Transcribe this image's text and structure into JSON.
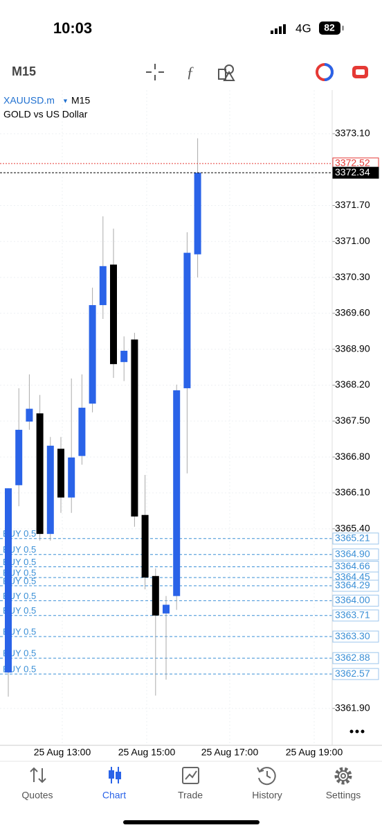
{
  "status_bar": {
    "time": "10:03",
    "network": "4G",
    "battery": "82"
  },
  "toolbar": {
    "timeframe": "M15"
  },
  "chart_data": {
    "type": "candlestick",
    "symbol": "XAUUSD.m",
    "timeframe": "M15",
    "description": "GOLD vs US Dollar",
    "open": [
      3362.6,
      3366.25,
      3367.49,
      3367.65,
      3365.3,
      3366.96,
      3366.01,
      3366.82,
      3367.84,
      3369.76,
      3370.55,
      3368.65,
      3369.09,
      3365.67,
      3364.48,
      3363.75,
      3364.09,
      3368.14,
      3370.75
    ],
    "high": [
      3366.19,
      3368.14,
      3368.41,
      3368.01,
      3367.19,
      3367.19,
      3368.33,
      3368.41,
      3370.1,
      3371.49,
      3371.25,
      3369.15,
      3369.22,
      3366.45,
      3364.63,
      3364.09,
      3368.21,
      3371.18,
      3373.01
    ],
    "low": [
      3362.13,
      3365.84,
      3367.33,
      3365.17,
      3365.17,
      3365.71,
      3365.71,
      3366.65,
      3367.67,
      3369.49,
      3368.34,
      3368.28,
      3365.44,
      3364.22,
      3362.15,
      3362.46,
      3363.82,
      3366.48,
      3370.3
    ],
    "close": [
      3366.19,
      3367.33,
      3367.74,
      3365.3,
      3367.02,
      3366.01,
      3366.79,
      3367.76,
      3369.76,
      3370.52,
      3368.61,
      3368.87,
      3365.64,
      3364.45,
      3363.71,
      3363.92,
      3368.1,
      3370.78,
      3372.34
    ],
    "up_color": "#2a63e8",
    "down_color": "#000000",
    "ylim": [
      3361.18,
      3373.95
    ],
    "yticks": [
      {
        "value": 3373.1,
        "label": "3373.10"
      },
      {
        "value": 3371.7,
        "label": "3371.70"
      },
      {
        "value": 3371,
        "label": "3371.00"
      },
      {
        "value": 3370.3,
        "label": "3370.30"
      },
      {
        "value": 3369.6,
        "label": "3369.60"
      },
      {
        "value": 3368.9,
        "label": "3368.90"
      },
      {
        "value": 3368.2,
        "label": "3368.20"
      },
      {
        "value": 3367.5,
        "label": "3367.50"
      },
      {
        "value": 3366.8,
        "label": "3366.80"
      },
      {
        "value": 3366.1,
        "label": "3366.10"
      },
      {
        "value": 3365.4,
        "label": "3365.40"
      },
      {
        "value": 3361.9,
        "label": "3361.90"
      }
    ],
    "x_labels": [
      "25 Aug 13:00",
      "25 Aug 15:00",
      "25 Aug 17:00",
      "25 Aug 19:00"
    ],
    "grid": true,
    "price_lines": [
      {
        "price": 3372.52,
        "color": "#e53935"
      },
      {
        "price": 3372.34,
        "color": "#000000"
      }
    ],
    "orders": [
      {
        "label": "BUY 0.5",
        "price": 3365.21
      },
      {
        "label": "BUY 0.5",
        "price": {
          "value": 3364.9,
          "label": "3364.90"
        }
      },
      {
        "label": "BUY 0.5",
        "price": 3364.66
      },
      {
        "label": "BUY 0.5",
        "price": 3364.45
      },
      {
        "label": "BUY 0.5",
        "price": 3364.29
      },
      {
        "label": "BUY 0.5",
        "price": {
          "value": 3364,
          "label": "3364.00"
        }
      },
      {
        "label": "BUY 0.5",
        "price": 3363.71
      },
      {
        "label": "BUY 0.5",
        "price": {
          "value": 3363.3,
          "label": "3363.30"
        }
      },
      {
        "label": "BUY 0.5",
        "price": 3362.88
      },
      {
        "label": "BUY 0.5",
        "price": 3362.57
      }
    ],
    "order_color": "#3a8fd6"
  },
  "tab_bar": {
    "tabs": [
      "Quotes",
      "Chart",
      "Trade",
      "History",
      "Settings"
    ],
    "active": 1
  }
}
